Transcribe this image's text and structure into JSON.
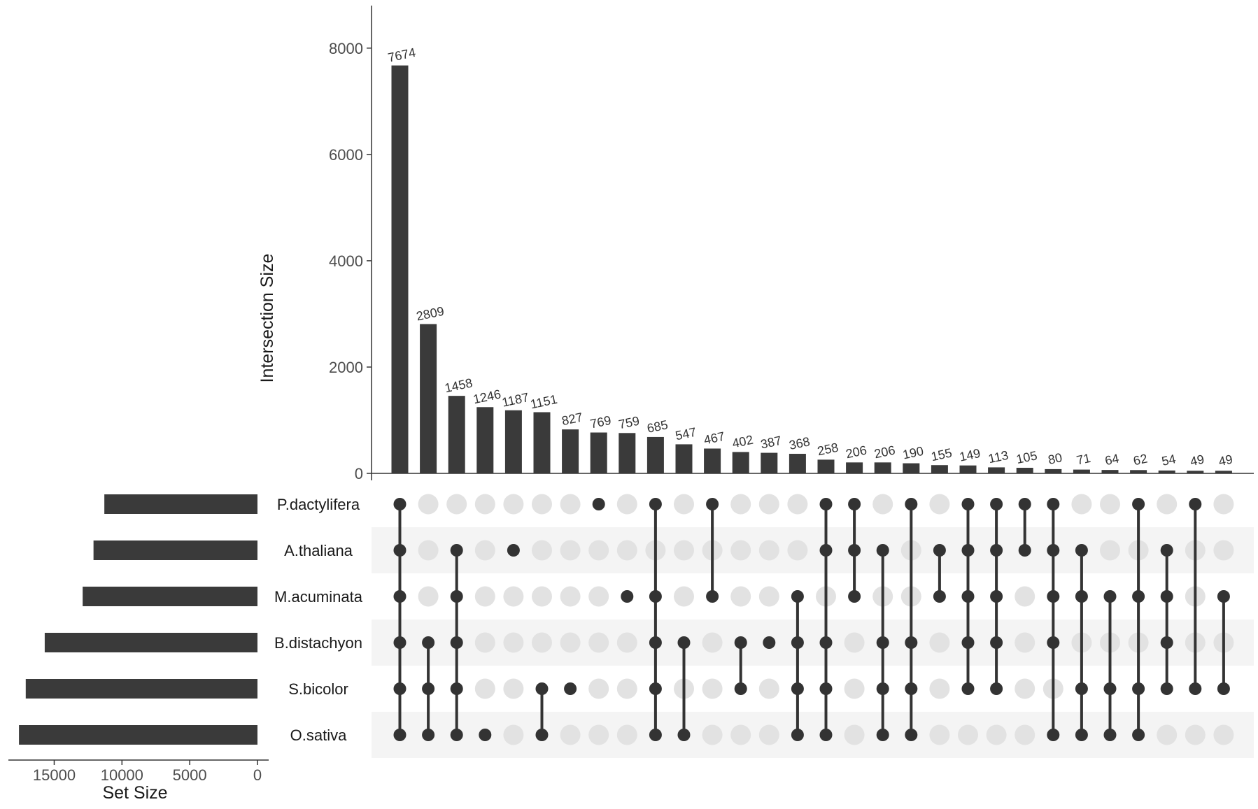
{
  "chart_data": {
    "type": "upset",
    "ylabel": "Intersection Size",
    "set_size_label": "Set Size",
    "ylim": [
      0,
      8800
    ],
    "yticks": [
      0,
      2000,
      4000,
      6000,
      8000
    ],
    "set_size_ticks": [
      15000,
      10000,
      5000,
      0
    ],
    "set_size_max": 19000,
    "sets": [
      {
        "name": "P.dactylifera",
        "size": 11300
      },
      {
        "name": "A.thaliana",
        "size": 12100
      },
      {
        "name": "M.acuminata",
        "size": 12900
      },
      {
        "name": "B.distachyon",
        "size": 15700
      },
      {
        "name": "S.bicolor",
        "size": 17100
      },
      {
        "name": "O.sativa",
        "size": 17600
      }
    ],
    "intersections": [
      {
        "value": 7674,
        "sets": [
          0,
          1,
          2,
          3,
          4,
          5
        ]
      },
      {
        "value": 2809,
        "sets": [
          3,
          4,
          5
        ]
      },
      {
        "value": 1458,
        "sets": [
          1,
          2,
          3,
          4,
          5
        ]
      },
      {
        "value": 1246,
        "sets": [
          5
        ]
      },
      {
        "value": 1187,
        "sets": [
          1
        ]
      },
      {
        "value": 1151,
        "sets": [
          4,
          5
        ]
      },
      {
        "value": 827,
        "sets": [
          4
        ]
      },
      {
        "value": 769,
        "sets": [
          0
        ]
      },
      {
        "value": 759,
        "sets": [
          2
        ]
      },
      {
        "value": 685,
        "sets": [
          0,
          2,
          3,
          4,
          5
        ]
      },
      {
        "value": 547,
        "sets": [
          3,
          5
        ]
      },
      {
        "value": 467,
        "sets": [
          0,
          2
        ]
      },
      {
        "value": 402,
        "sets": [
          3,
          4
        ]
      },
      {
        "value": 387,
        "sets": [
          3
        ]
      },
      {
        "value": 368,
        "sets": [
          2,
          3,
          4,
          5
        ]
      },
      {
        "value": 258,
        "sets": [
          0,
          1,
          3,
          4,
          5
        ]
      },
      {
        "value": 206,
        "sets": [
          0,
          1,
          2
        ]
      },
      {
        "value": 206,
        "sets": [
          1,
          3,
          4,
          5
        ]
      },
      {
        "value": 190,
        "sets": [
          0,
          3,
          4,
          5
        ]
      },
      {
        "value": 155,
        "sets": [
          1,
          2
        ]
      },
      {
        "value": 149,
        "sets": [
          0,
          1,
          2,
          3,
          4
        ]
      },
      {
        "value": 113,
        "sets": [
          0,
          1,
          2,
          3,
          4
        ]
      },
      {
        "value": 105,
        "sets": [
          0,
          1
        ]
      },
      {
        "value": 80,
        "sets": [
          0,
          1,
          2,
          3,
          5
        ]
      },
      {
        "value": 71,
        "sets": [
          1,
          2,
          4,
          5
        ]
      },
      {
        "value": 64,
        "sets": [
          2,
          4,
          5
        ]
      },
      {
        "value": 62,
        "sets": [
          0,
          2,
          4,
          5
        ]
      },
      {
        "value": 54,
        "sets": [
          1,
          2,
          3,
          4
        ]
      },
      {
        "value": 49,
        "sets": [
          0,
          4
        ]
      },
      {
        "value": 49,
        "sets": [
          2,
          4
        ]
      }
    ],
    "colors": {
      "bar": "#3a3a3a",
      "dot_active": "#333333",
      "dot_inactive": "#e2e2e2",
      "stripe": "#f4f4f4",
      "axis": "#333333",
      "tick_text": "#4d4d4d"
    }
  }
}
